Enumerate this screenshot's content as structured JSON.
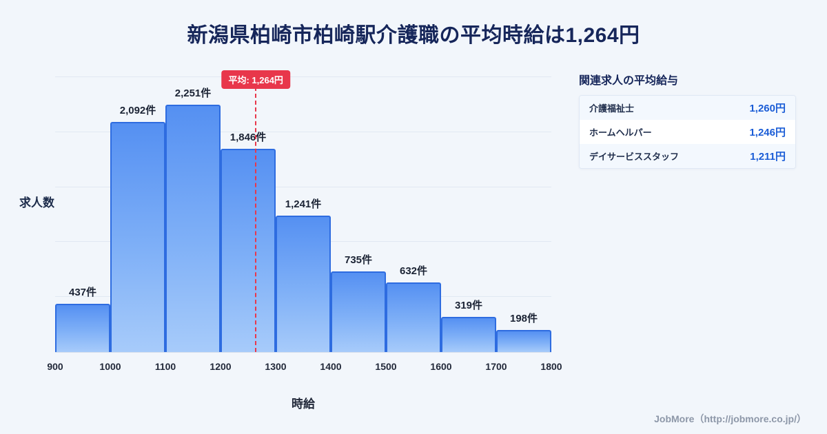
{
  "page": {
    "title": "新潟県柏崎市柏崎駅介護職の平均時給は1,264円",
    "footer": "JobMore（http://jobmore.co.jp/）"
  },
  "chart_data": {
    "type": "bar",
    "title": "新潟県柏崎市柏崎駅介護職の平均時給は1,264円",
    "xlabel": "時給",
    "ylabel": "求人数",
    "bin_edges": [
      900,
      1000,
      1100,
      1200,
      1300,
      1400,
      1500,
      1600,
      1700,
      1800
    ],
    "values": [
      437,
      2092,
      2251,
      1846,
      1241,
      735,
      632,
      319,
      198
    ],
    "value_labels": [
      "437件",
      "2,092件",
      "2,251件",
      "1,846件",
      "1,241件",
      "735件",
      "632件",
      "319件",
      "198件"
    ],
    "average": 1264,
    "average_label": "平均: 1,264円",
    "ylim": [
      0,
      2500
    ],
    "ytick_step": 500,
    "grid": true,
    "legend": "none"
  },
  "side_panel": {
    "title": "関連求人の平均給与",
    "rows": [
      {
        "label": "介護福祉士",
        "value": "1,260円"
      },
      {
        "label": "ホームヘルパー",
        "value": "1,246円"
      },
      {
        "label": "デイサービススタッフ",
        "value": "1,211円"
      }
    ]
  },
  "colors": {
    "page_bg": "#f2f6fb",
    "title_text": "#16265a",
    "bar_fill_top": "#5590f2",
    "bar_fill_bottom": "#a7cbfa",
    "bar_border": "#2e6ce0",
    "grid_line": "#e1e8f2",
    "average_red": "#e8374b",
    "panel_value_blue": "#1a5cd6",
    "footer_gray": "#8d97a8"
  }
}
